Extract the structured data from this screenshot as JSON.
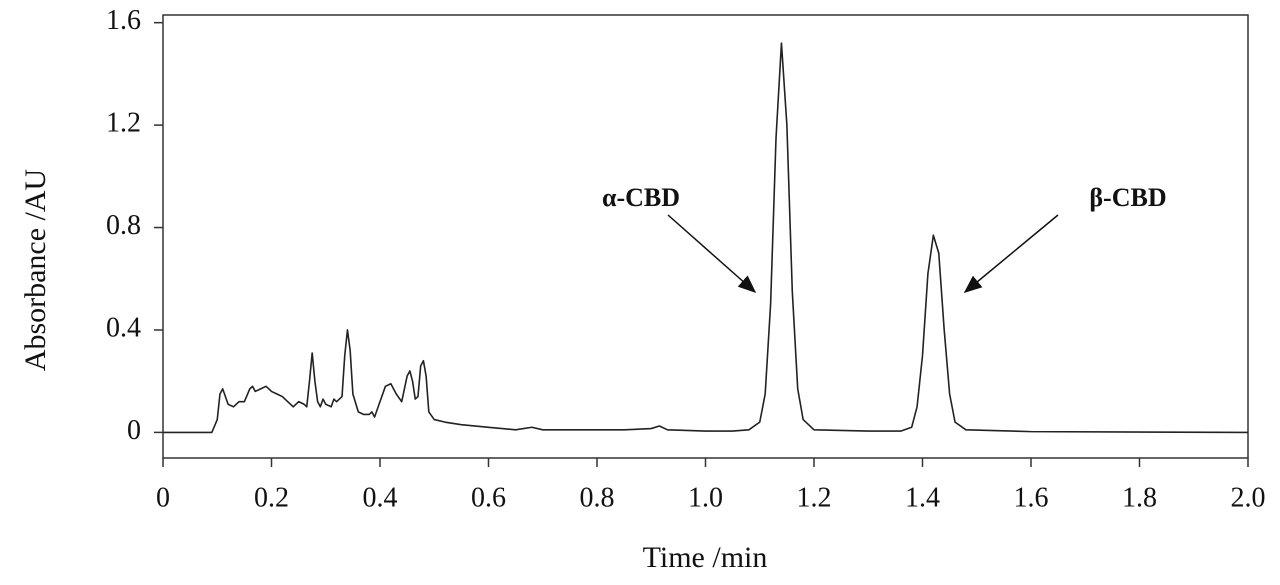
{
  "chart_data": {
    "type": "line",
    "x_label": "Time /min",
    "y_label": "Absorbance /AU",
    "xlim": [
      0,
      2
    ],
    "ylim": [
      -0.1,
      1.63
    ],
    "xticks": [
      0,
      0.2,
      0.4,
      0.6,
      0.8,
      {
        "value": 1,
        "label": "1.0"
      },
      1.2,
      1.4,
      1.6,
      1.8,
      {
        "value": 2,
        "label": "2.0"
      }
    ],
    "yticks": [
      0,
      0.4,
      0.8,
      1.2,
      1.6
    ],
    "annotations": [
      "α-CBD",
      "β-CBD"
    ],
    "series": [
      {
        "color": "#222222",
        "x": [
          0,
          0.05,
          0.09,
          0.1,
          0.105,
          0.11,
          0.115,
          0.12,
          0.13,
          0.14,
          0.15,
          0.16,
          0.165,
          0.17,
          0.18,
          0.19,
          0.2,
          0.21,
          0.22,
          0.23,
          0.24,
          0.25,
          0.26,
          0.265,
          0.27,
          0.275,
          0.28,
          0.285,
          0.29,
          0.295,
          0.3,
          0.31,
          0.315,
          0.32,
          0.33,
          0.335,
          0.34,
          0.345,
          0.35,
          0.36,
          0.37,
          0.38,
          0.385,
          0.39,
          0.4,
          0.41,
          0.42,
          0.43,
          0.44,
          0.45,
          0.455,
          0.46,
          0.465,
          0.47,
          0.475,
          0.48,
          0.485,
          0.49,
          0.5,
          0.52,
          0.55,
          0.6,
          0.65,
          0.68,
          0.7,
          0.75,
          0.8,
          0.85,
          0.9,
          0.915,
          0.93,
          1.0,
          1.05,
          1.08,
          1.1,
          1.11,
          1.12,
          1.13,
          1.14,
          1.15,
          1.16,
          1.17,
          1.18,
          1.2,
          1.3,
          1.36,
          1.38,
          1.39,
          1.4,
          1.41,
          1.42,
          1.43,
          1.44,
          1.45,
          1.46,
          1.48,
          1.6,
          2.0
        ],
        "values": [
          0,
          0,
          0,
          0.05,
          0.15,
          0.17,
          0.14,
          0.11,
          0.1,
          0.12,
          0.12,
          0.17,
          0.18,
          0.16,
          0.17,
          0.18,
          0.16,
          0.15,
          0.14,
          0.12,
          0.1,
          0.12,
          0.11,
          0.1,
          0.2,
          0.31,
          0.2,
          0.12,
          0.1,
          0.13,
          0.11,
          0.1,
          0.13,
          0.12,
          0.14,
          0.3,
          0.4,
          0.32,
          0.15,
          0.08,
          0.07,
          0.07,
          0.08,
          0.06,
          0.12,
          0.18,
          0.19,
          0.15,
          0.12,
          0.22,
          0.24,
          0.2,
          0.13,
          0.14,
          0.26,
          0.28,
          0.22,
          0.08,
          0.05,
          0.04,
          0.03,
          0.02,
          0.01,
          0.02,
          0.01,
          0.01,
          0.01,
          0.01,
          0.015,
          0.025,
          0.01,
          0.005,
          0.005,
          0.01,
          0.04,
          0.15,
          0.5,
          1.15,
          1.52,
          1.2,
          0.55,
          0.17,
          0.05,
          0.01,
          0.005,
          0.005,
          0.02,
          0.1,
          0.3,
          0.62,
          0.77,
          0.7,
          0.4,
          0.15,
          0.04,
          0.01,
          0.003,
          0
        ]
      }
    ]
  }
}
